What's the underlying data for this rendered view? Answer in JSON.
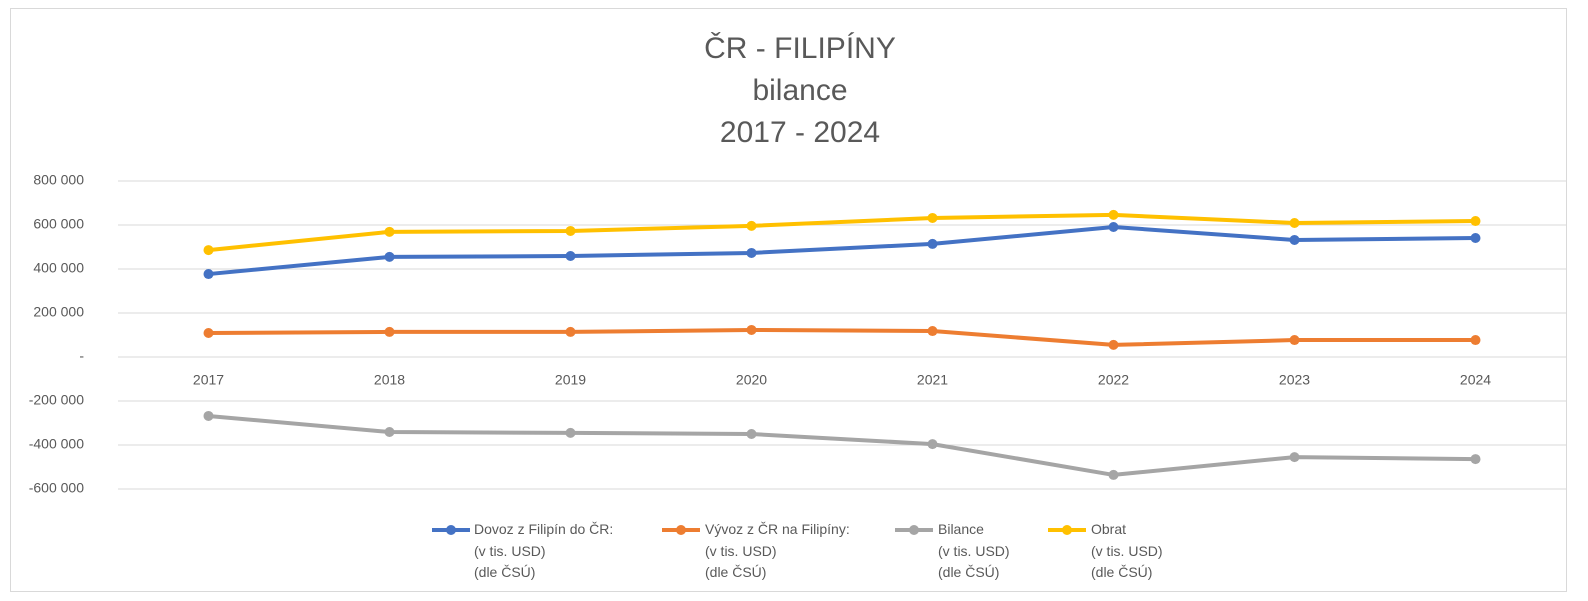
{
  "chart_data": {
    "type": "line",
    "title": [
      "ČR - FILIPÍNY",
      "bilance",
      "2017 - 2024"
    ],
    "categories": [
      "2017",
      "2018",
      "2019",
      "2020",
      "2021",
      "2022",
      "2023",
      "2024"
    ],
    "series": [
      {
        "name": "Dovoz z Filipín do ČR:\n(v tis. USD)\n(dle ČSÚ)",
        "color": "#4472c4",
        "values": [
          377000,
          455000,
          459000,
          473000,
          514000,
          591000,
          532000,
          541000
        ]
      },
      {
        "name": "Vývoz z ČR na Filipíny:\n(v tis. USD)\n(dle ČSÚ)",
        "color": "#ed7d31",
        "values": [
          109000,
          114000,
          114000,
          123000,
          118000,
          55000,
          77000,
          77000
        ]
      },
      {
        "name": "Bilance\n(v tis. USD)\n(dle ČSÚ)",
        "color": "#a5a5a5",
        "values": [
          -268000,
          -341000,
          -345000,
          -350000,
          -396000,
          -536000,
          -455000,
          -464000
        ]
      },
      {
        "name": "Obrat\n(v tis. USD)\n(dle ČSÚ)",
        "color": "#ffc000",
        "values": [
          486000,
          569000,
          573000,
          596000,
          632000,
          646000,
          609000,
          618000
        ]
      }
    ],
    "ylim": [
      -600000,
      800000
    ],
    "yticks": [
      {
        "value": -600000,
        "label": "-600 000"
      },
      {
        "value": -400000,
        "label": "-400 000"
      },
      {
        "value": -200000,
        "label": "-200 000"
      },
      {
        "value": 0,
        "label": "-"
      },
      {
        "value": 200000,
        "label": "200 000"
      },
      {
        "value": 400000,
        "label": "400 000"
      },
      {
        "value": 600000,
        "label": "600 000"
      },
      {
        "value": 800000,
        "label": "800 000"
      }
    ],
    "grid": true,
    "legend": "bottom"
  }
}
